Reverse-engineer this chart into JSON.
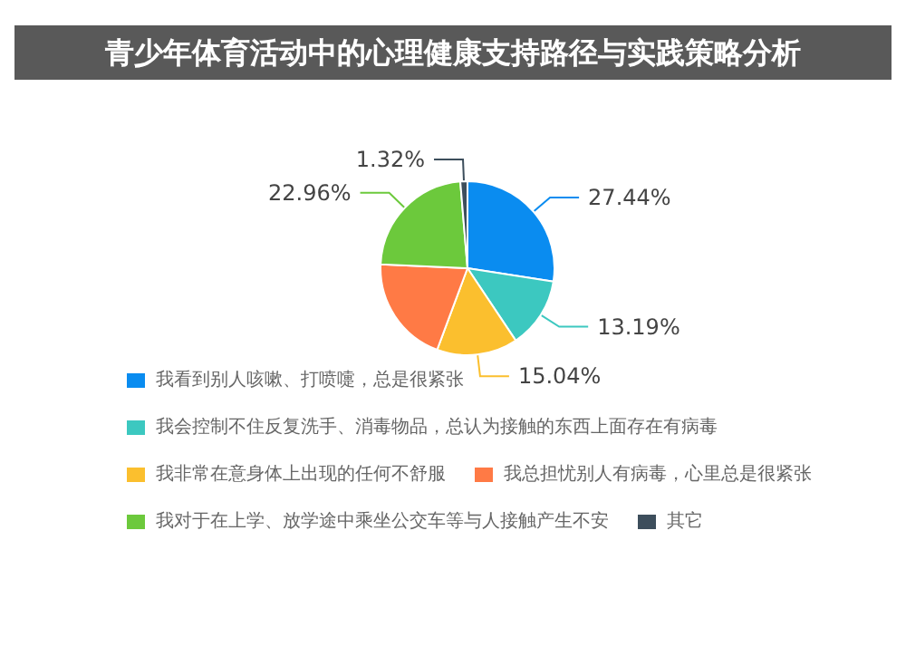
{
  "chart_data": {
    "type": "pie",
    "title": "青少年体育活动中的心理健康支持路径与实践策略分析",
    "categories": [
      "我看到别人咳嗽、打喷嚏，总是很紧张",
      "我会控制不住反复洗手、消毒物品，总认为接触的东西上面存在有病毒",
      "我非常在意身体上出现的任何不舒服",
      "我总担忧别人有病毒，心里总是很紧张",
      "我对于在上学、放学途中乘坐公交车等与人接触产生不安",
      "其它"
    ],
    "values": [
      27.44,
      13.19,
      15.04,
      20.05,
      22.96,
      1.32
    ],
    "value_labels": [
      "27.44%",
      "13.19%",
      "15.04%",
      null,
      "22.96%",
      "1.32%"
    ],
    "colors": [
      "#0a8cf0",
      "#3cc8c0",
      "#fbbf2e",
      "#ff7a45",
      "#6cc93c",
      "#3d4e5c"
    ],
    "legend": "bottom"
  }
}
